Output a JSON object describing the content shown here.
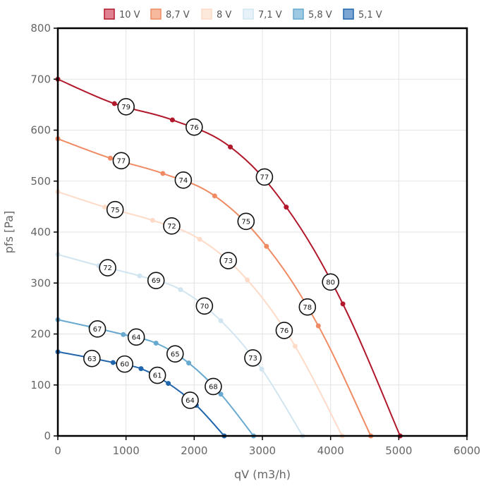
{
  "chart_data": {
    "type": "line",
    "xlabel": "qV (m3/h)",
    "ylabel": "pfs [Pa]",
    "xlim": [
      0,
      6000
    ],
    "ylim": [
      0,
      800
    ],
    "xticks": [
      0,
      1000,
      2000,
      3000,
      4000,
      5000,
      6000
    ],
    "yticks": [
      0,
      100,
      200,
      300,
      400,
      500,
      600,
      700,
      800
    ],
    "grid": true,
    "legend_position": "top",
    "series": [
      {
        "name": "10 V",
        "color": "#b2182b",
        "fill": "#e08191",
        "points": [
          [
            0,
            700
          ],
          [
            830,
            652
          ],
          [
            1680,
            620
          ],
          [
            2530,
            567
          ],
          [
            3350,
            449
          ],
          [
            4180,
            259
          ],
          [
            5020,
            0
          ]
        ],
        "labels": [
          {
            "x": 1000,
            "y": 646,
            "text": "79"
          },
          {
            "x": 2000,
            "y": 606,
            "text": "76"
          },
          {
            "x": 3030,
            "y": 508,
            "text": "77"
          },
          {
            "x": 4000,
            "y": 302,
            "text": "80"
          }
        ]
      },
      {
        "name": "8,7 V",
        "color": "#ef8a62",
        "fill": "#f7b99d",
        "points": [
          [
            0,
            583
          ],
          [
            770,
            545
          ],
          [
            1540,
            515
          ],
          [
            2300,
            471
          ],
          [
            3060,
            372
          ],
          [
            3820,
            216
          ],
          [
            4590,
            0
          ]
        ],
        "labels": [
          {
            "x": 930,
            "y": 540,
            "text": "77"
          },
          {
            "x": 1840,
            "y": 502,
            "text": "74"
          },
          {
            "x": 2760,
            "y": 421,
            "text": "75"
          },
          {
            "x": 3660,
            "y": 253,
            "text": "78"
          }
        ]
      },
      {
        "name": "8 V",
        "color": "#fddbc7",
        "fill": "#fde9dc",
        "points": [
          [
            0,
            479
          ],
          [
            690,
            449
          ],
          [
            1390,
            423
          ],
          [
            2080,
            386
          ],
          [
            2780,
            306
          ],
          [
            3480,
            176
          ],
          [
            4170,
            0
          ]
        ],
        "labels": [
          {
            "x": 840,
            "y": 444,
            "text": "75"
          },
          {
            "x": 1670,
            "y": 412,
            "text": "72"
          },
          {
            "x": 2500,
            "y": 344,
            "text": "73"
          },
          {
            "x": 3320,
            "y": 207,
            "text": "76"
          }
        ]
      },
      {
        "name": "7,1 V",
        "color": "#d1e5f0",
        "fill": "#e6f1f8",
        "points": [
          [
            0,
            356
          ],
          [
            600,
            334
          ],
          [
            1200,
            314
          ],
          [
            1800,
            287
          ],
          [
            2390,
            226
          ],
          [
            2990,
            131
          ],
          [
            3590,
            0
          ]
        ],
        "labels": [
          {
            "x": 730,
            "y": 330,
            "text": "72"
          },
          {
            "x": 1440,
            "y": 305,
            "text": "69"
          },
          {
            "x": 2150,
            "y": 255,
            "text": "70"
          },
          {
            "x": 2860,
            "y": 153,
            "text": "73"
          }
        ]
      },
      {
        "name": "5,8 V",
        "color": "#67a9cf",
        "fill": "#9ec9e2",
        "points": [
          [
            0,
            228
          ],
          [
            480,
            214
          ],
          [
            960,
            199
          ],
          [
            1440,
            182
          ],
          [
            1920,
            143
          ],
          [
            2390,
            82
          ],
          [
            2870,
            0
          ]
        ],
        "labels": [
          {
            "x": 580,
            "y": 210,
            "text": "67"
          },
          {
            "x": 1150,
            "y": 194,
            "text": "64"
          },
          {
            "x": 1720,
            "y": 161,
            "text": "65"
          },
          {
            "x": 2280,
            "y": 97,
            "text": "68"
          }
        ]
      },
      {
        "name": "5,1 V",
        "color": "#2166ac",
        "fill": "#7ba5d2",
        "points": [
          [
            0,
            165
          ],
          [
            410,
            155
          ],
          [
            810,
            144
          ],
          [
            1220,
            132
          ],
          [
            1620,
            103
          ],
          [
            2030,
            60
          ],
          [
            2440,
            0
          ]
        ],
        "labels": [
          {
            "x": 500,
            "y": 152,
            "text": "63"
          },
          {
            "x": 980,
            "y": 141,
            "text": "60"
          },
          {
            "x": 1460,
            "y": 119,
            "text": "61"
          },
          {
            "x": 1940,
            "y": 70,
            "text": "64"
          }
        ]
      }
    ]
  }
}
